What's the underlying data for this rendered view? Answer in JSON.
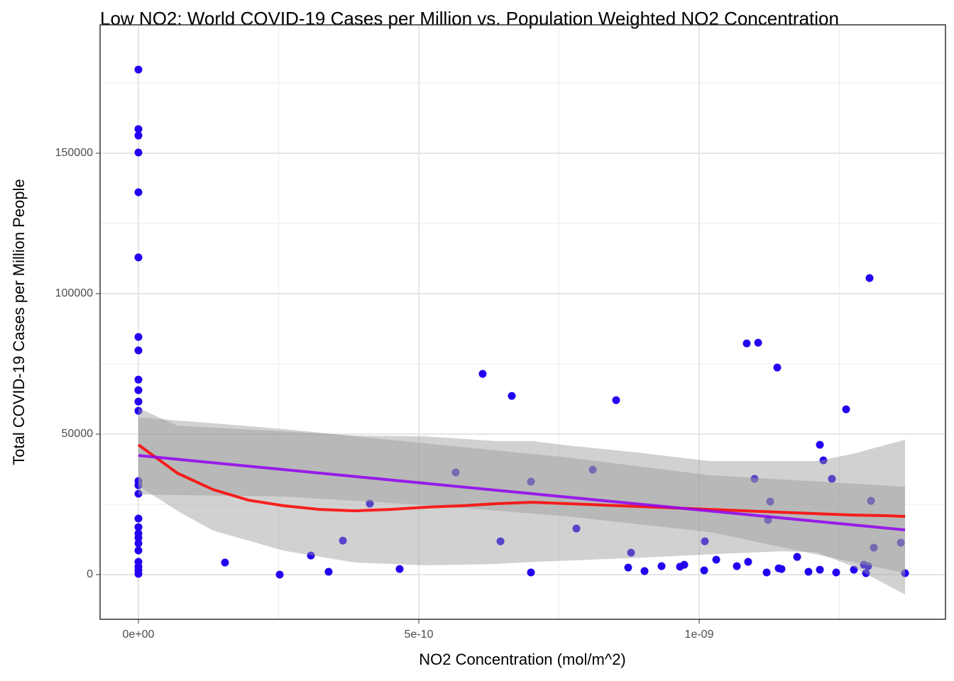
{
  "chart_data": {
    "type": "scatter",
    "title": "Low NO2: World COVID-19 Cases per Million vs. Population Weighted NO2 Concentration",
    "x_label": "NO2 Concentration (mol/m^2)",
    "y_label": "Total COVID-19 Cases per Million People",
    "xlim": [
      -6.835e-11,
      1.4392e-09
    ],
    "ylim": [
      -15909,
      195707
    ],
    "xticks": [
      {
        "value": 0,
        "label": "0e+00"
      },
      {
        "value": 5e-10,
        "label": "5e-10"
      },
      {
        "value": 1e-09,
        "label": "1e-09"
      }
    ],
    "yticks": [
      0,
      50000,
      100000,
      150000
    ],
    "x_minor_ticks": [
      2.5e-10,
      7.5e-10,
      1.25e-09
    ],
    "y_minor_ticks": [
      25000,
      75000,
      125000,
      175000
    ],
    "grid": true,
    "series": [
      {
        "type": "scatter",
        "color": "#2200f0",
        "x": [
          0,
          0,
          0,
          0,
          0,
          0,
          0,
          0,
          0,
          0,
          0,
          0,
          0,
          0,
          0,
          0,
          0,
          0,
          0,
          0,
          0,
          0,
          0,
          0,
          0,
          1.544e-10,
          2.519e-10,
          3.076e-10,
          3.392e-10,
          3.646e-10,
          4.127e-10,
          4.658e-10,
          5.658e-10,
          6.139e-10,
          6.456e-10,
          6.658e-10,
          7e-10,
          7e-10,
          7.81e-10,
          8.101e-10,
          8.519e-10,
          8.734e-10,
          8.785e-10,
          9.025e-10,
          9.329e-10,
          9.658e-10,
          9.734e-10,
          1.0089e-09,
          1.0101e-09,
          1.0304e-09,
          1.0671e-09,
          1.0848e-09,
          1.0873e-09,
          1.0987e-09,
          1.1051e-09,
          1.1203e-09,
          1.1228e-09,
          1.1266e-09,
          1.1392e-09,
          1.1418e-09,
          1.1468e-09,
          1.1747e-09,
          1.1949e-09,
          1.2152e-09,
          1.2152e-09,
          1.2215e-09,
          1.2367e-09,
          1.2443e-09,
          1.262e-09,
          1.2759e-09,
          1.2937e-09,
          1.2975e-09,
          1.3013e-09,
          1.3038e-09,
          1.3063e-09,
          1.3114e-09,
          1.3595e-09,
          1.3671e-09
        ],
        "values": [
          179780,
          158600,
          156300,
          150250,
          136100,
          112900,
          84600,
          79800,
          69400,
          65650,
          61600,
          58300,
          33300,
          31800,
          28800,
          19950,
          16900,
          14650,
          13100,
          11100,
          8600,
          4550,
          2800,
          1500,
          250,
          4300,
          0,
          6800,
          1000,
          12100,
          25250,
          2000,
          36350,
          71450,
          11850,
          63600,
          750,
          33100,
          16400,
          37350,
          62100,
          2500,
          7800,
          1250,
          3000,
          2800,
          3500,
          1500,
          11850,
          5300,
          3000,
          82300,
          4550,
          34100,
          82550,
          750,
          19450,
          26000,
          73700,
          2250,
          2000,
          6300,
          1000,
          46200,
          1750,
          40650,
          34100,
          750,
          58850,
          1750,
          3500,
          500,
          3000,
          105550,
          26250,
          9600,
          11350,
          500
        ]
      },
      {
        "type": "band",
        "color": "#999999",
        "x": [
          0,
          6.962e-11,
          1.329e-10,
          2.595e-10,
          3.861e-10,
          5.127e-10,
          6.392e-10,
          7.025e-10,
          7.658e-10,
          8.924e-10,
          1.019e-09,
          1.1456e-09,
          1.2089e-09,
          1.2722e-09,
          1.3671e-09
        ],
        "upper": [
          59300,
          53000,
          52300,
          51000,
          49500,
          49200,
          47500,
          47500,
          46000,
          43400,
          40400,
          40400,
          40400,
          42900,
          48000
        ],
        "lower": [
          31600,
          22700,
          15700,
          8500,
          4300,
          3300,
          3800,
          4500,
          5000,
          6000,
          7200,
          8300,
          8000,
          3000,
          -7100
        ]
      },
      {
        "type": "band",
        "color": "#999999",
        "x": [
          0,
          2.595e-10,
          5.127e-10,
          7.658e-10,
          1.019e-09,
          1.3671e-09
        ],
        "upper": [
          56000,
          51800,
          46700,
          41700,
          35400,
          31300
        ],
        "lower": [
          28500,
          27800,
          24750,
          20700,
          15150,
          500
        ]
      },
      {
        "type": "line",
        "color": "#ff0000",
        "x": [
          0,
          6.962e-11,
          1.329e-10,
          1.962e-10,
          2.595e-10,
          3.228e-10,
          3.861e-10,
          4.494e-10,
          5.127e-10,
          5.759e-10,
          6.392e-10,
          7.025e-10,
          7.658e-10,
          8.291e-10,
          8.924e-10,
          9.557e-10,
          1.019e-09,
          1.0823e-09,
          1.1456e-09,
          1.2089e-09,
          1.2722e-09,
          1.3354e-09,
          1.3671e-09
        ],
        "values": [
          46200,
          36100,
          30300,
          26500,
          24500,
          23200,
          22700,
          23200,
          24000,
          24500,
          25250,
          25750,
          25250,
          24750,
          24250,
          23750,
          23200,
          22700,
          22200,
          21700,
          21200,
          20950,
          20700
        ]
      },
      {
        "type": "line",
        "color": "#9000f0",
        "x": [
          0,
          1.3671e-09
        ],
        "values": [
          42400,
          15900
        ]
      }
    ]
  }
}
